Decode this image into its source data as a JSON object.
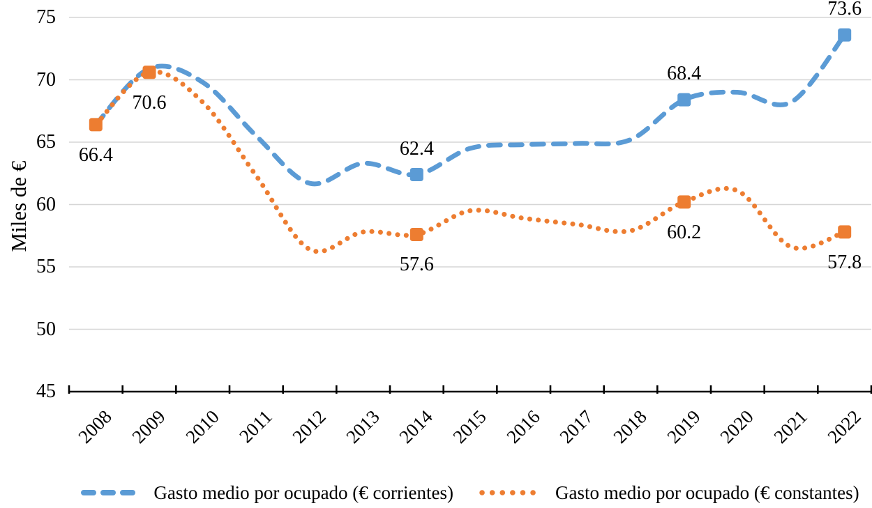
{
  "chart_data": {
    "type": "line",
    "title": "",
    "ylabel": "Miles de €",
    "x": [
      "2008",
      "2009",
      "2010",
      "2011",
      "2012",
      "2013",
      "2014",
      "2015",
      "2016",
      "2017",
      "2018",
      "2019",
      "2020",
      "2021",
      "2022"
    ],
    "series": [
      {
        "name": "Gasto medio por ocupado (€ corrientes)",
        "color": "#5B9BD5",
        "line_style": "dashed",
        "values": [
          66.4,
          70.9,
          69.8,
          65.5,
          61.7,
          63.3,
          62.4,
          64.5,
          64.8,
          64.9,
          65.2,
          68.4,
          69.0,
          68.2,
          73.6
        ],
        "marker_years": [
          "2014",
          "2019",
          "2022"
        ]
      },
      {
        "name": "Gasto medio por ocupado (€ constantes)",
        "color": "#ED7D31",
        "line_style": "dotted",
        "values": [
          66.4,
          70.6,
          68.2,
          62.3,
          56.4,
          57.8,
          57.6,
          59.5,
          58.9,
          58.4,
          57.9,
          60.2,
          61.1,
          56.6,
          57.8
        ],
        "marker_years": [
          "2008",
          "2009",
          "2014",
          "2019",
          "2022"
        ]
      }
    ],
    "point_labels": [
      {
        "series": 1,
        "year": "2008",
        "text": "66.4",
        "position": "below"
      },
      {
        "series": 1,
        "year": "2009",
        "text": "70.6",
        "position": "below"
      },
      {
        "series": 0,
        "year": "2014",
        "text": "62.4",
        "position": "above"
      },
      {
        "series": 1,
        "year": "2014",
        "text": "57.6",
        "position": "below"
      },
      {
        "series": 0,
        "year": "2019",
        "text": "68.4",
        "position": "above"
      },
      {
        "series": 1,
        "year": "2019",
        "text": "60.2",
        "position": "below"
      },
      {
        "series": 0,
        "year": "2022",
        "text": "73.6",
        "position": "above"
      },
      {
        "series": 1,
        "year": "2022",
        "text": "57.8",
        "position": "below"
      }
    ],
    "y_ticks": [
      75,
      70,
      65,
      60,
      55,
      50,
      45
    ],
    "ylim": [
      45,
      75
    ],
    "grid": "horizontal",
    "legend_position": "bottom",
    "colors": {
      "gridline": "#D6D6D6",
      "axis": "#000000",
      "text": "#000000",
      "background": "#FFFFFF"
    }
  }
}
